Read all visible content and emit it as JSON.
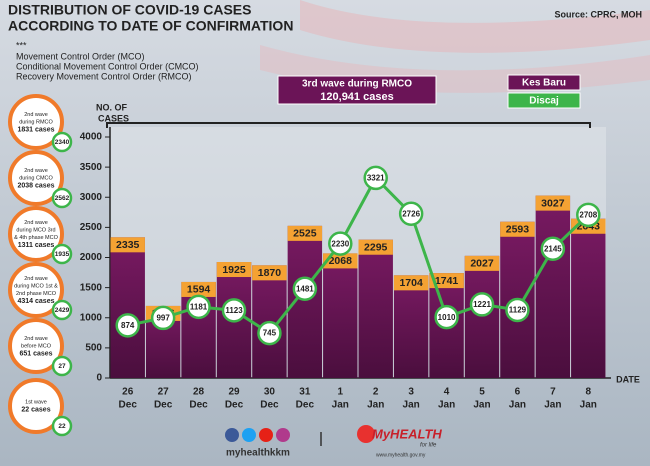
{
  "header": {
    "title": [
      "DISTRIBUTION OF COVID-19 CASES",
      "ACCORDING TO DATE OF CONFIRMATION"
    ],
    "source": "Source: CPRC, MOH",
    "notes": [
      "***",
      "Movement Control Order (MCO)",
      "Conditional Movement Control Order (CMCO)",
      "Recovery Movement Control Order (RMCO)"
    ]
  },
  "waves": [
    {
      "lines": [
        "2nd wave",
        "during RMCO",
        "1831 cases"
      ],
      "discharged": 2340
    },
    {
      "lines": [
        "2nd wave",
        "during CMCO",
        "2038 cases"
      ],
      "discharged": 2562
    },
    {
      "lines": [
        "2nd wave",
        "during MCO 3rd",
        "& 4th phase MCO",
        "1311 cases"
      ],
      "discharged": 1935
    },
    {
      "lines": [
        "2nd wave",
        "during MCO 1st &",
        "2nd phase MCO",
        "4314 cases"
      ],
      "discharged": 2429
    },
    {
      "lines": [
        "2nd wave",
        "before MCO",
        "651 cases"
      ],
      "discharged": 27
    },
    {
      "lines": [
        "1st wave",
        "22 cases"
      ],
      "discharged": 22
    }
  ],
  "footer": {
    "handle": "myhealthkkm",
    "brand": "MyHEALTH",
    "tagline": "for life",
    "url": "www.myhealth.gov.my"
  },
  "chart_data": {
    "type": "bar",
    "banner": [
      "3rd wave during RMCO",
      "120,941 cases"
    ],
    "ylabel": [
      "NO. OF",
      "CASES"
    ],
    "xlabel": "DATE",
    "categories": [
      [
        "26",
        "Dec"
      ],
      [
        "27",
        "Dec"
      ],
      [
        "28",
        "Dec"
      ],
      [
        "29",
        "Dec"
      ],
      [
        "30",
        "Dec"
      ],
      [
        "31",
        "Dec"
      ],
      [
        "1",
        "Jan"
      ],
      [
        "2",
        "Jan"
      ],
      [
        "3",
        "Jan"
      ],
      [
        "4",
        "Jan"
      ],
      [
        "5",
        "Jan"
      ],
      [
        "6",
        "Jan"
      ],
      [
        "7",
        "Jan"
      ],
      [
        "8",
        "Jan"
      ]
    ],
    "series": [
      {
        "name": "Kes Baru",
        "type": "bar",
        "color": "#6b1457",
        "label_color": "#f4a233",
        "values": [
          2335,
          1196,
          1594,
          1925,
          1870,
          2525,
          2068,
          2295,
          1704,
          1741,
          2027,
          2593,
          3027,
          2643
        ]
      },
      {
        "name": "Discaj",
        "type": "line",
        "color": "#3db54a",
        "values": [
          874,
          997,
          1181,
          1123,
          745,
          1481,
          2230,
          3321,
          2726,
          1010,
          1221,
          1129,
          2145,
          2708
        ]
      }
    ],
    "ylim": [
      0,
      4000
    ],
    "yticks": [
      0,
      500,
      1000,
      1500,
      2000,
      2500,
      3000,
      3500,
      4000
    ]
  }
}
